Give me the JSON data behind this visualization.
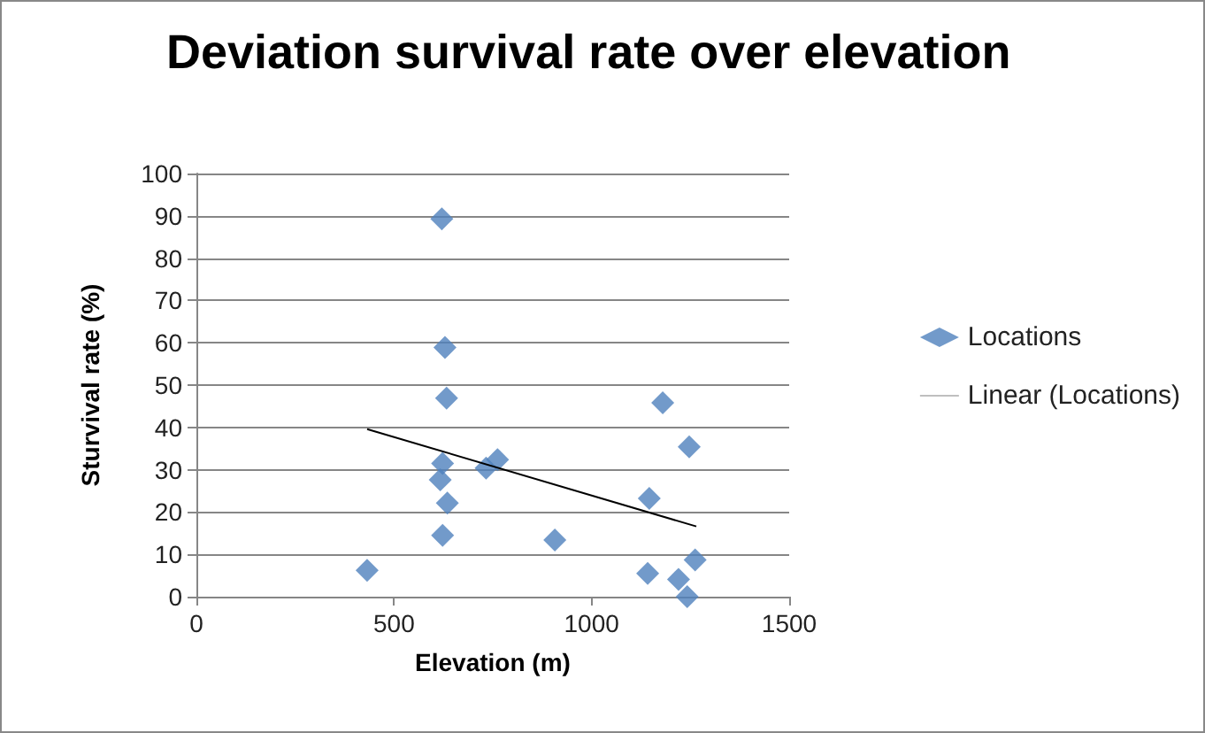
{
  "chart_data": {
    "type": "scatter",
    "title": "Deviation survival rate over elevation",
    "xlabel": "Elevation (m)",
    "ylabel": "Sturvival rate (%)",
    "xlim": [
      0,
      1500
    ],
    "xticks": [
      0,
      500,
      1000,
      1500
    ],
    "ylim": [
      0,
      100
    ],
    "yticks": [
      0,
      10,
      20,
      30,
      40,
      50,
      60,
      70,
      80,
      90,
      100
    ],
    "grid": "y",
    "legend": "right",
    "series": [
      {
        "name": "Locations",
        "color": "#4f81bd",
        "marker": "diamond",
        "x": [
          621,
          629,
          633,
          623,
          617,
          635,
          623,
          432,
          733,
          762,
          907,
          1180,
          1247,
          1146,
          1142,
          1220,
          1262,
          1242
        ],
        "values": [
          89.3,
          58.9,
          46.9,
          31.5,
          27.6,
          22.1,
          14.5,
          6.2,
          30.4,
          32.4,
          13.4,
          45.8,
          35.4,
          23.2,
          5.5,
          4.1,
          8.7,
          0
        ]
      },
      {
        "name": "Linear (Locations)",
        "type": "line",
        "marker": "none",
        "color": "#000000",
        "x": [
          432,
          1265
        ],
        "values": [
          39.6,
          16.6
        ]
      }
    ]
  }
}
